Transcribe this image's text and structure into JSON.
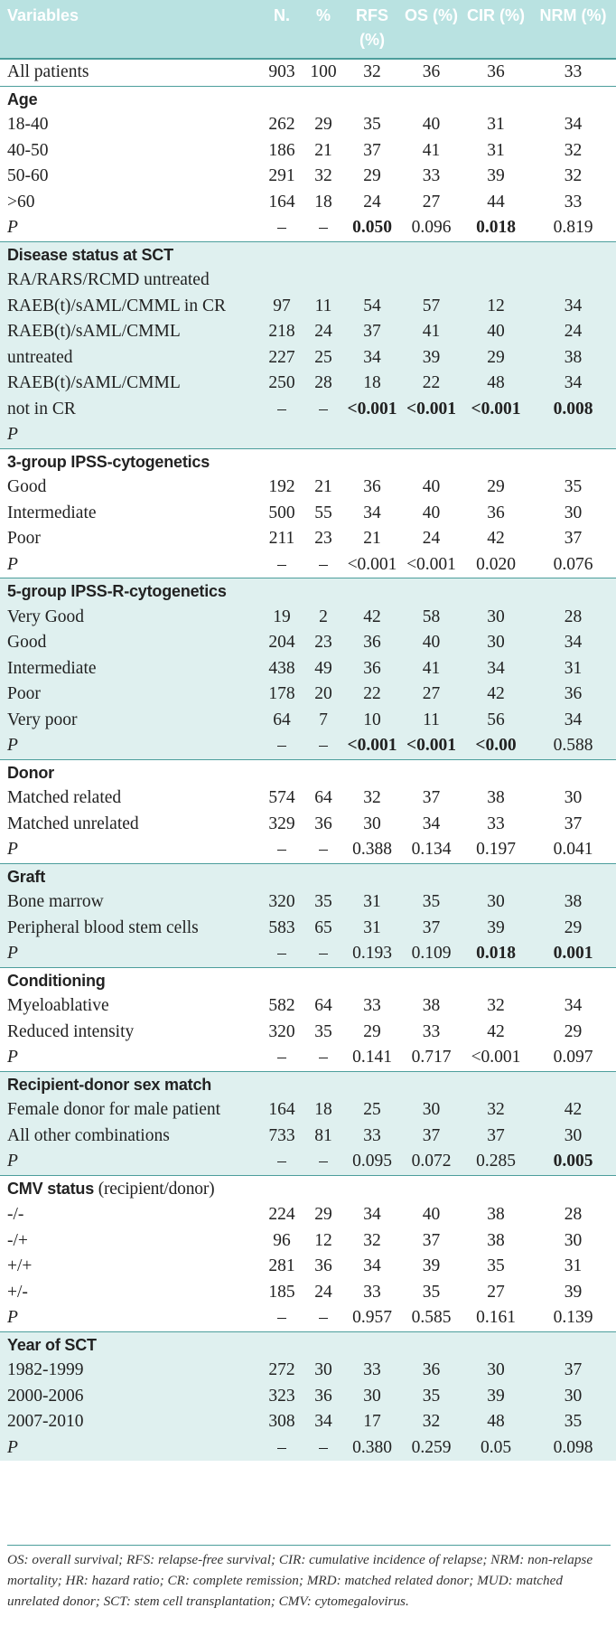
{
  "header": [
    "Variables",
    "N.",
    "%",
    "RFS (%)",
    "OS (%)",
    "CIR (%)",
    "NRM (%)"
  ],
  "groups": [
    {
      "title": "",
      "tint": false,
      "rows": [
        {
          "label": "All patients",
          "values": [
            "903",
            "100",
            "32",
            "36",
            "36",
            "33"
          ]
        }
      ]
    },
    {
      "title": "Age",
      "tint": false,
      "rows": [
        {
          "label": "18-40",
          "values": [
            "262",
            "29",
            "35",
            "40",
            "31",
            "34"
          ]
        },
        {
          "label": "40-50",
          "values": [
            "186",
            "21",
            "37",
            "41",
            "31",
            "32"
          ]
        },
        {
          "label": "50-60",
          "values": [
            "291",
            "32",
            "29",
            "33",
            "39",
            "32"
          ]
        },
        {
          "label": ">60",
          "values": [
            "164",
            "18",
            "24",
            "27",
            "44",
            "33"
          ]
        },
        {
          "label": "P",
          "p": true,
          "values": [
            "–",
            "–",
            "0.050",
            "0.096",
            "0.018",
            "0.819"
          ],
          "bold": [
            2,
            4
          ]
        }
      ]
    },
    {
      "title": "Disease status at SCT",
      "tint": true,
      "rows": [
        {
          "label": "RA/RARS/RCMD untreated",
          "values": [
            "",
            "",
            "",
            "",
            "",
            ""
          ]
        },
        {
          "label": "RAEB(t)/sAML/CMML in CR",
          "values": [
            "97",
            "11",
            "54",
            "57",
            "12",
            "34"
          ]
        },
        {
          "label": "RAEB(t)/sAML/CMML",
          "values": [
            "218",
            "24",
            "37",
            "41",
            "40",
            "24"
          ]
        },
        {
          "label": "untreated",
          "values": [
            "227",
            "25",
            "34",
            "39",
            "29",
            "38"
          ]
        },
        {
          "label": "RAEB(t)/sAML/CMML",
          "values": [
            "250",
            "28",
            "18",
            "22",
            "48",
            "34"
          ]
        },
        {
          "label": "not in CR",
          "values": [
            "–",
            "–",
            "<0.001",
            "<0.001",
            "<0.001",
            "0.008"
          ],
          "bold": [
            2,
            3,
            4,
            5
          ]
        },
        {
          "label": "P",
          "p": true,
          "values": [
            "",
            "",
            "",
            "",
            "",
            ""
          ]
        }
      ]
    },
    {
      "title": "3-group IPSS-cytogenetics",
      "tint": false,
      "rows": [
        {
          "label": "Good",
          "values": [
            "192",
            "21",
            "36",
            "40",
            "29",
            "35"
          ]
        },
        {
          "label": "Intermediate",
          "values": [
            "500",
            "55",
            "34",
            "40",
            "36",
            "30"
          ]
        },
        {
          "label": "Poor",
          "values": [
            "211",
            "23",
            "21",
            "24",
            "42",
            "37"
          ]
        },
        {
          "label": "P",
          "p": true,
          "values": [
            "–",
            "–",
            "<0.001",
            "<0.001",
            "0.020",
            "0.076"
          ]
        }
      ]
    },
    {
      "title": "5-group IPSS-R-cytogenetics",
      "tint": true,
      "rows": [
        {
          "label": "Very Good",
          "values": [
            "19",
            "2",
            "42",
            "58",
            "30",
            "28"
          ]
        },
        {
          "label": "Good",
          "values": [
            "204",
            "23",
            "36",
            "40",
            "30",
            "34"
          ]
        },
        {
          "label": "Intermediate",
          "values": [
            "438",
            "49",
            "36",
            "41",
            "34",
            "31"
          ]
        },
        {
          "label": "Poor",
          "values": [
            "178",
            "20",
            "22",
            "27",
            "42",
            "36"
          ]
        },
        {
          "label": "Very poor",
          "values": [
            "64",
            "7",
            "10",
            "11",
            "56",
            "34"
          ]
        },
        {
          "label": "P",
          "p": true,
          "values": [
            "–",
            "–",
            "<0.001",
            "<0.001",
            "<0.00",
            "0.588"
          ],
          "bold": [
            2,
            3,
            4
          ]
        }
      ]
    },
    {
      "title": "Donor",
      "tint": false,
      "rows": [
        {
          "label": "Matched related",
          "values": [
            "574",
            "64",
            "32",
            "37",
            "38",
            "30"
          ]
        },
        {
          "label": "Matched unrelated",
          "values": [
            "329",
            "36",
            "30",
            "34",
            "33",
            "37"
          ]
        },
        {
          "label": "P",
          "p": true,
          "values": [
            "–",
            "–",
            "0.388",
            "0.134",
            "0.197",
            "0.041"
          ]
        }
      ]
    },
    {
      "title": "Graft",
      "tint": true,
      "rows": [
        {
          "label": "Bone marrow",
          "values": [
            "320",
            "35",
            "31",
            "35",
            "30",
            "38"
          ]
        },
        {
          "label": "Peripheral blood stem cells",
          "values": [
            "583",
            "65",
            "31",
            "37",
            "39",
            "29"
          ]
        },
        {
          "label": "P",
          "p": true,
          "values": [
            "–",
            "–",
            "0.193",
            "0.109",
            "0.018",
            "0.001"
          ],
          "bold": [
            4,
            5
          ]
        }
      ]
    },
    {
      "title": "Conditioning",
      "tint": false,
      "rows": [
        {
          "label": "Myeloablative",
          "values": [
            "582",
            "64",
            "33",
            "38",
            "32",
            "34"
          ]
        },
        {
          "label": "Reduced intensity",
          "values": [
            "320",
            "35",
            "29",
            "33",
            "42",
            "29"
          ]
        },
        {
          "label": "P",
          "p": true,
          "values": [
            "–",
            "–",
            "0.141",
            "0.717",
            "<0.001",
            "0.097"
          ]
        }
      ]
    },
    {
      "title": "Recipient-donor sex match",
      "tint": true,
      "rows": [
        {
          "label": "Female donor for male patient",
          "values": [
            "164",
            "18",
            "25",
            "30",
            "32",
            "42"
          ]
        },
        {
          "label": "All other combinations",
          "values": [
            "733",
            "81",
            "33",
            "37",
            "37",
            "30"
          ]
        },
        {
          "label": "P",
          "p": true,
          "values": [
            "–",
            "–",
            "0.095",
            "0.072",
            "0.285",
            "0.005"
          ],
          "bold": [
            5
          ]
        }
      ]
    },
    {
      "title": "CMV status",
      "title_tail": " (recipient/donor)",
      "tint": false,
      "rows": [
        {
          "label": "-/-",
          "values": [
            "224",
            "29",
            "34",
            "40",
            "38",
            "28"
          ]
        },
        {
          "label": "-/+",
          "values": [
            "96",
            "12",
            "32",
            "37",
            "38",
            "30"
          ]
        },
        {
          "label": "+/+",
          "values": [
            "281",
            "36",
            "34",
            "39",
            "35",
            "31"
          ]
        },
        {
          "label": "+/-",
          "values": [
            "185",
            "24",
            "33",
            "35",
            "27",
            "39"
          ]
        },
        {
          "label": "P",
          "p": true,
          "values": [
            "–",
            "–",
            "0.957",
            "0.585",
            "0.161",
            "0.139"
          ]
        }
      ]
    },
    {
      "title": "Year of SCT",
      "tint": true,
      "rows": [
        {
          "label": "1982-1999",
          "values": [
            "272",
            "30",
            "33",
            "36",
            "30",
            "37"
          ]
        },
        {
          "label": "2000-2006",
          "values": [
            "323",
            "36",
            "30",
            "35",
            "39",
            "30"
          ]
        },
        {
          "label": "2007-2010",
          "values": [
            "308",
            "34",
            "17",
            "32",
            "48",
            "35"
          ]
        },
        {
          "label": "P",
          "p": true,
          "values": [
            "–",
            "–",
            "0.380",
            "0.259",
            "0.05",
            "0.098"
          ]
        }
      ]
    }
  ],
  "footnote": "OS: overall survival; RFS: relapse-free survival; CIR: cumulative incidence of relapse; NRM: non-relapse mortality; HR: hazard ratio; CR: complete remission; MRD: matched related donor; MUD: matched unrelated donor; SCT: stem cell transplantation; CMV: cytomegalovirus."
}
